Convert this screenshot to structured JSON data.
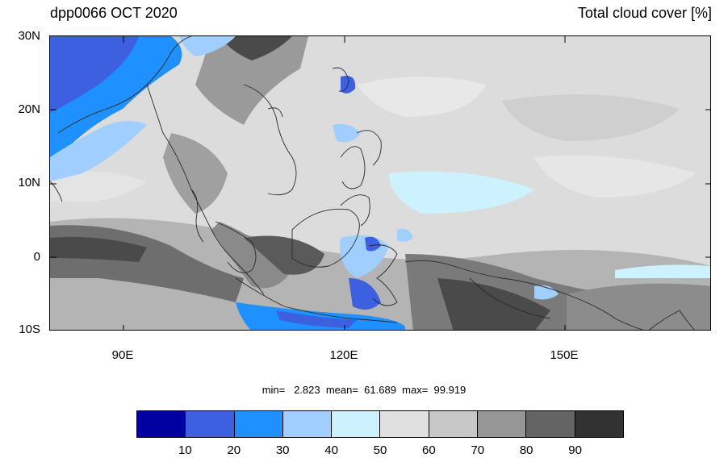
{
  "title_left": "dpp0066 OCT 2020",
  "title_right": "Total cloud cover [%]",
  "lat_labels": [
    "30N",
    "20N",
    "10N",
    "0",
    "10S"
  ],
  "lon_labels": [
    "90E",
    "120E",
    "150E"
  ],
  "stats": "min=   2.823  mean=  61.689  max=  99.919",
  "colorbar": {
    "colors": [
      "#0000a0",
      "#3d60e0",
      "#1e90ff",
      "#a0cfff",
      "#cdf2ff",
      "#e0e0e0",
      "#c8c8c8",
      "#969696",
      "#646464",
      "#323232"
    ],
    "labels": [
      "10",
      "20",
      "30",
      "40",
      "50",
      "60",
      "70",
      "80",
      "90"
    ]
  },
  "map": {
    "lon_range": [
      80,
      170
    ],
    "lat_range": [
      -10,
      30
    ],
    "background_color": "#dcdcdc"
  }
}
